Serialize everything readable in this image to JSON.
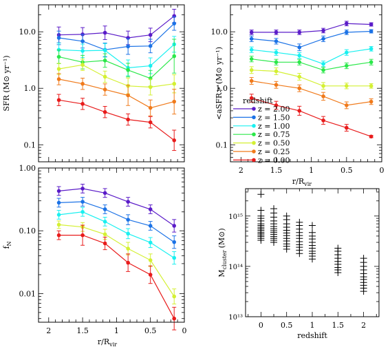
{
  "chart_data": [
    {
      "id": "sfr",
      "type": "line",
      "ylabel": "SFR (M⊙ yr⁻¹)",
      "xlabel": "",
      "yscale": "log",
      "ylim": [
        0.05,
        30
      ],
      "xlim": [
        2.15,
        0
      ],
      "x": [
        1.85,
        1.5,
        1.17,
        0.83,
        0.5,
        0.15
      ],
      "x_ticks": [
        2,
        1.5,
        1,
        0.5,
        0
      ],
      "show_x_ticklabels": false,
      "y_ticks": [
        {
          "v": 10,
          "label": "10.0"
        },
        {
          "v": 1,
          "label": "1.0"
        },
        {
          "v": 0.1,
          "label": "0.1"
        }
      ],
      "series": [
        {
          "name": "z = 2.00",
          "color": "#5a1bc8",
          "values": [
            8.8,
            9.0,
            9.6,
            7.8,
            8.8,
            19.0
          ],
          "err": [
            0.14,
            0.12,
            0.12,
            0.12,
            0.12,
            0.12
          ]
        },
        {
          "name": "z = 1.50",
          "color": "#1b72e6",
          "values": [
            7.8,
            6.8,
            4.8,
            5.5,
            5.6,
            14.0
          ],
          "err": [
            0.12,
            0.12,
            0.12,
            0.14,
            0.12,
            0.12
          ]
        },
        {
          "name": "z = 1.00",
          "color": "#19f0f0",
          "values": [
            4.8,
            4.6,
            4.7,
            2.3,
            2.5,
            6.0
          ],
          "err": [
            0.12,
            0.12,
            0.12,
            0.14,
            0.14,
            0.14
          ]
        },
        {
          "name": "z = 0.75",
          "color": "#2be84a",
          "values": [
            3.6,
            2.9,
            3.1,
            2.1,
            1.5,
            3.7
          ],
          "err": [
            0.12,
            0.12,
            0.12,
            0.12,
            0.14,
            0.3
          ]
        },
        {
          "name": "z = 0.50",
          "color": "#d4f033",
          "values": [
            2.2,
            2.6,
            1.6,
            1.1,
            1.05,
            1.2
          ],
          "err": [
            0.1,
            0.1,
            0.1,
            0.14,
            0.14,
            0.16
          ]
        },
        {
          "name": "z = 0.25",
          "color": "#f07a1b",
          "values": [
            1.45,
            1.2,
            0.95,
            0.75,
            0.45,
            0.58
          ],
          "err": [
            0.1,
            0.1,
            0.1,
            0.18,
            0.14,
            0.22
          ]
        },
        {
          "name": "z = 0.00",
          "color": "#e81b1b",
          "values": [
            0.62,
            0.53,
            0.38,
            0.28,
            0.25,
            0.12
          ],
          "err": [
            0.1,
            0.1,
            0.1,
            0.1,
            0.1,
            0.18
          ]
        }
      ]
    },
    {
      "id": "asfr",
      "type": "line",
      "ylabel": "<aSFR> (M⊙ yr⁻¹)",
      "xlabel": "r/R",
      "xlabel_sub": "vir",
      "yscale": "log",
      "ylim": [
        0.05,
        30
      ],
      "xlim": [
        2.15,
        0
      ],
      "x": [
        1.85,
        1.5,
        1.17,
        0.83,
        0.5,
        0.15
      ],
      "x_ticks": [
        2,
        1.5,
        1,
        0.5,
        0
      ],
      "show_x_ticklabels": true,
      "y_ticks": [
        {
          "v": 10,
          "label": "10.0"
        },
        {
          "v": 1,
          "label": "1.0"
        },
        {
          "v": 0.1,
          "label": "0.1"
        }
      ],
      "legend_title": "redshift",
      "legend_position": "bottom-left",
      "series": [
        {
          "name": "z = 2.00",
          "color": "#5a1bc8",
          "values": [
            9.8,
            9.8,
            9.8,
            10.5,
            14.0,
            13.5
          ],
          "err": [
            0.04,
            0.04,
            0.04,
            0.04,
            0.04,
            0.03
          ]
        },
        {
          "name": "z = 1.50",
          "color": "#1b72e6",
          "values": [
            7.5,
            6.8,
            5.3,
            7.5,
            9.8,
            10.2
          ],
          "err": [
            0.05,
            0.05,
            0.06,
            0.05,
            0.04,
            0.03
          ]
        },
        {
          "name": "z = 1.00",
          "color": "#19f0f0",
          "values": [
            4.8,
            4.3,
            3.8,
            2.7,
            4.3,
            5.0
          ],
          "err": [
            0.05,
            0.05,
            0.05,
            0.05,
            0.05,
            0.04
          ]
        },
        {
          "name": "z = 0.75",
          "color": "#2be84a",
          "values": [
            3.3,
            2.9,
            2.9,
            2.1,
            2.5,
            2.9
          ],
          "err": [
            0.05,
            0.05,
            0.05,
            0.05,
            0.05,
            0.05
          ]
        },
        {
          "name": "z = 0.50",
          "color": "#d4f033",
          "values": [
            2.1,
            2.0,
            1.6,
            1.1,
            1.1,
            1.1
          ],
          "err": [
            0.06,
            0.06,
            0.06,
            0.06,
            0.05,
            0.04
          ]
        },
        {
          "name": "z = 0.25",
          "color": "#f07a1b",
          "values": [
            1.35,
            1.15,
            1.0,
            0.72,
            0.5,
            0.58
          ],
          "err": [
            0.06,
            0.06,
            0.06,
            0.07,
            0.06,
            0.05
          ]
        },
        {
          "name": "z = 0.00",
          "color": "#e81b1b",
          "values": [
            0.67,
            0.5,
            0.4,
            0.27,
            0.2,
            0.14
          ],
          "err": [
            0.07,
            0.07,
            0.08,
            0.07,
            0.06,
            0.02
          ]
        }
      ]
    },
    {
      "id": "fn",
      "type": "line",
      "ylabel": "f",
      "ylabel_sub": "N",
      "xlabel": "r/R",
      "xlabel_sub": "vir",
      "yscale": "log",
      "ylim": [
        0.0035,
        1.0
      ],
      "xlim": [
        2.15,
        0
      ],
      "x": [
        1.85,
        1.5,
        1.17,
        0.83,
        0.5,
        0.15
      ],
      "x_ticks": [
        2,
        1.5,
        1,
        0.5,
        0
      ],
      "show_x_ticklabels": true,
      "y_ticks": [
        {
          "v": 1,
          "label": "1.00"
        },
        {
          "v": 0.1,
          "label": "0.10"
        },
        {
          "v": 0.01,
          "label": "0.01"
        }
      ],
      "series": [
        {
          "name": "z = 2.00",
          "color": "#5a1bc8",
          "values": [
            0.43,
            0.47,
            0.4,
            0.29,
            0.22,
            0.12
          ],
          "err": [
            0.07,
            0.07,
            0.07,
            0.07,
            0.07,
            0.1
          ]
        },
        {
          "name": "z = 1.50",
          "color": "#1b72e6",
          "values": [
            0.28,
            0.29,
            0.22,
            0.15,
            0.12,
            0.066
          ],
          "err": [
            0.07,
            0.07,
            0.07,
            0.08,
            0.07,
            0.1
          ]
        },
        {
          "name": "z = 1.00",
          "color": "#19f0f0",
          "values": [
            0.18,
            0.2,
            0.14,
            0.09,
            0.065,
            0.037
          ],
          "err": [
            0.07,
            0.07,
            0.07,
            0.08,
            0.08,
            0.1
          ]
        },
        {
          "name": "z = 0.50",
          "color": "#d4f033",
          "values": [
            0.125,
            0.115,
            0.088,
            0.052,
            0.034,
            0.009
          ],
          "err": [
            0.06,
            0.07,
            0.08,
            0.1,
            0.1,
            0.12
          ]
        },
        {
          "name": "z = 0.00",
          "color": "#e81b1b",
          "values": [
            0.085,
            0.085,
            0.063,
            0.031,
            0.02,
            0.004
          ],
          "err": [
            0.07,
            0.16,
            0.1,
            0.14,
            0.14,
            0.18
          ]
        }
      ]
    },
    {
      "id": "mcluster",
      "type": "scatter",
      "marker": "+",
      "ylabel": "M",
      "ylabel_sub": "cluster",
      "ylabel_unit": "(M⊙)",
      "xlabel": "redshift",
      "yscale": "log",
      "ylim": [
        10000000000000.0,
        3500000000000000.0
      ],
      "xlim": [
        -0.3,
        2.3
      ],
      "x_ticks": [
        {
          "v": 0,
          "label": "0"
        },
        {
          "v": 0.5,
          "label": "0.5"
        },
        {
          "v": 1,
          "label": "1"
        },
        {
          "v": 1.5,
          "label": "1.5"
        },
        {
          "v": 2,
          "label": "2"
        }
      ],
      "y_ticks": [
        {
          "v": 1000000000000000.0,
          "label": "10¹⁵"
        },
        {
          "v": 100000000000000.0,
          "label": "10¹⁴"
        },
        {
          "v": 10000000000000.0,
          "label": "10¹³"
        }
      ],
      "groups": [
        {
          "x": 0.0,
          "values": [
            2700000000000000.0,
            1300000000000000.0,
            1000000000000000.0,
            900000000000000.0,
            800000000000000.0,
            700000000000000.0,
            650000000000000.0,
            600000000000000.0,
            560000000000000.0,
            520000000000000.0,
            480000000000000.0,
            450000000000000.0,
            420000000000000.0,
            390000000000000.0,
            360000000000000.0,
            330000000000000.0
          ]
        },
        {
          "x": 0.25,
          "values": [
            1400000000000000.0,
            1150000000000000.0,
            950000000000000.0,
            800000000000000.0,
            700000000000000.0,
            620000000000000.0,
            560000000000000.0,
            510000000000000.0,
            470000000000000.0,
            430000000000000.0,
            390000000000000.0,
            360000000000000.0,
            330000000000000.0,
            300000000000000.0
          ]
        },
        {
          "x": 0.5,
          "values": [
            1000000000000000.0,
            850000000000000.0,
            700000000000000.0,
            600000000000000.0,
            520000000000000.0,
            460000000000000.0,
            410000000000000.0,
            360000000000000.0,
            320000000000000.0,
            280000000000000.0,
            250000000000000.0,
            220000000000000.0
          ]
        },
        {
          "x": 0.75,
          "values": [
            750000000000000.0,
            650000000000000.0,
            550000000000000.0,
            470000000000000.0,
            410000000000000.0,
            360000000000000.0,
            310000000000000.0,
            270000000000000.0,
            240000000000000.0,
            210000000000000.0,
            180000000000000.0
          ]
        },
        {
          "x": 1.0,
          "values": [
            650000000000000.0,
            470000000000000.0,
            400000000000000.0,
            350000000000000.0,
            300000000000000.0,
            260000000000000.0,
            230000000000000.0,
            200000000000000.0,
            180000000000000.0,
            160000000000000.0,
            140000000000000.0
          ]
        },
        {
          "x": 1.5,
          "values": [
            230000000000000.0,
            200000000000000.0,
            170000000000000.0,
            145000000000000.0,
            125000000000000.0,
            110000000000000.0,
            95000000000000.0,
            85000000000000.0,
            75000000000000.0
          ]
        },
        {
          "x": 2.0,
          "values": [
            145000000000000.0,
            120000000000000.0,
            100000000000000.0,
            85000000000000.0,
            72000000000000.0,
            62000000000000.0,
            55000000000000.0,
            48000000000000.0,
            42000000000000.0,
            37000000000000.0,
            32000000000000.0
          ]
        }
      ]
    }
  ]
}
